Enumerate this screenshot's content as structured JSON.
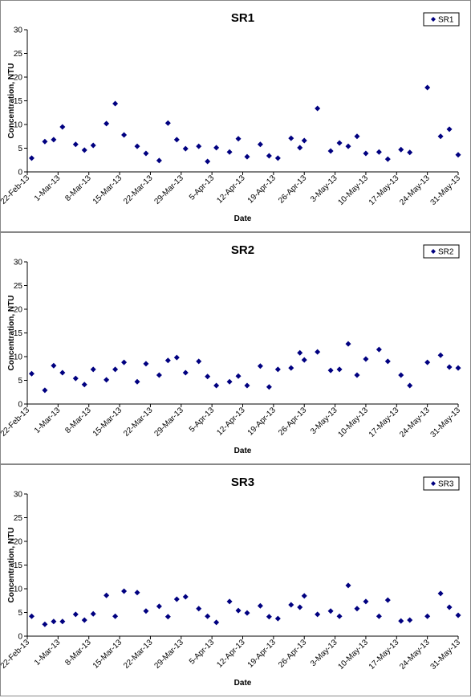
{
  "chart_data": [
    {
      "type": "scatter",
      "title": "SR1",
      "x_label": "Date",
      "y_label": "Concentration, NTU",
      "x": [
        "2013-02-23",
        "2013-02-26",
        "2013-02-28",
        "2013-03-02",
        "2013-03-05",
        "2013-03-07",
        "2013-03-09",
        "2013-03-12",
        "2013-03-14",
        "2013-03-16",
        "2013-03-19",
        "2013-03-21",
        "2013-03-24",
        "2013-03-26",
        "2013-03-28",
        "2013-03-30",
        "2013-04-02",
        "2013-04-04",
        "2013-04-06",
        "2013-04-09",
        "2013-04-11",
        "2013-04-13",
        "2013-04-16",
        "2013-04-18",
        "2013-04-20",
        "2013-04-23",
        "2013-04-25",
        "2013-04-26",
        "2013-04-29",
        "2013-05-02",
        "2013-05-04",
        "2013-05-06",
        "2013-05-08",
        "2013-05-10",
        "2013-05-13",
        "2013-05-15",
        "2013-05-18",
        "2013-05-20",
        "2013-05-24",
        "2013-05-27",
        "2013-05-29",
        "2013-05-31"
      ],
      "series": [
        {
          "name": "SR1",
          "color": "#000080",
          "values": [
            2.9,
            6.4,
            6.8,
            9.5,
            5.8,
            4.6,
            5.6,
            10.2,
            14.4,
            7.8,
            5.4,
            3.9,
            2.4,
            10.3,
            6.8,
            4.9,
            5.4,
            2.2,
            5.1,
            4.2,
            7.0,
            3.2,
            5.8,
            3.4,
            2.9,
            7.1,
            5.1,
            6.6,
            13.4,
            4.4,
            6.1,
            5.4,
            7.5,
            3.9,
            4.2,
            2.7,
            4.7,
            4.1,
            17.8,
            7.5,
            9.0,
            3.6
          ]
        }
      ],
      "xlim": [
        "2013-02-22",
        "2013-05-31"
      ],
      "xticks": [
        {
          "value": "2013-02-22",
          "label": "22-Feb-13"
        },
        {
          "value": "2013-03-01",
          "label": "1-Mar-13"
        },
        {
          "value": "2013-03-08",
          "label": "8-Mar-13"
        },
        {
          "value": "2013-03-15",
          "label": "15-Mar-13"
        },
        {
          "value": "2013-03-22",
          "label": "22-Mar-13"
        },
        {
          "value": "2013-03-29",
          "label": "29-Mar-13"
        },
        {
          "value": "2013-04-05",
          "label": "5-Apr-13"
        },
        {
          "value": "2013-04-12",
          "label": "12-Apr-13"
        },
        {
          "value": "2013-04-19",
          "label": "19-Apr-13"
        },
        {
          "value": "2013-04-26",
          "label": "26-Apr-13"
        },
        {
          "value": "2013-05-03",
          "label": "3-May-13"
        },
        {
          "value": "2013-05-10",
          "label": "10-May-13"
        },
        {
          "value": "2013-05-17",
          "label": "17-May-13"
        },
        {
          "value": "2013-05-24",
          "label": "24-May-13"
        },
        {
          "value": "2013-05-31",
          "label": "31-May-13"
        }
      ],
      "ylim": [
        0,
        30
      ],
      "yticks": [
        0,
        5,
        10,
        15,
        20,
        25,
        30
      ],
      "legend": "top-right"
    },
    {
      "type": "scatter",
      "title": "SR2",
      "x_label": "Date",
      "y_label": "Concentration, NTU",
      "x": [
        "2013-02-23",
        "2013-02-26",
        "2013-02-28",
        "2013-03-02",
        "2013-03-05",
        "2013-03-07",
        "2013-03-09",
        "2013-03-12",
        "2013-03-14",
        "2013-03-16",
        "2013-03-19",
        "2013-03-21",
        "2013-03-24",
        "2013-03-26",
        "2013-03-28",
        "2013-03-30",
        "2013-04-02",
        "2013-04-04",
        "2013-04-06",
        "2013-04-09",
        "2013-04-11",
        "2013-04-13",
        "2013-04-16",
        "2013-04-18",
        "2013-04-20",
        "2013-04-23",
        "2013-04-25",
        "2013-04-26",
        "2013-04-29",
        "2013-05-02",
        "2013-05-04",
        "2013-05-06",
        "2013-05-08",
        "2013-05-10",
        "2013-05-13",
        "2013-05-15",
        "2013-05-18",
        "2013-05-20",
        "2013-05-24",
        "2013-05-27",
        "2013-05-29",
        "2013-05-31"
      ],
      "series": [
        {
          "name": "SR2",
          "color": "#000080",
          "values": [
            6.4,
            2.9,
            8.1,
            6.6,
            5.4,
            4.1,
            7.3,
            5.1,
            7.3,
            8.8,
            4.7,
            8.5,
            6.1,
            9.2,
            9.8,
            6.6,
            9.0,
            5.8,
            3.9,
            4.7,
            5.9,
            3.9,
            8.0,
            3.6,
            7.3,
            7.6,
            10.8,
            9.3,
            11.0,
            7.1,
            7.3,
            12.7,
            6.1,
            9.5,
            11.5,
            9.0,
            6.1,
            3.9,
            8.8,
            10.3,
            7.8,
            7.6
          ]
        }
      ],
      "xlim": [
        "2013-02-22",
        "2013-05-31"
      ],
      "xticks": [
        {
          "value": "2013-02-22",
          "label": "22-Feb-13"
        },
        {
          "value": "2013-03-01",
          "label": "1-Mar-13"
        },
        {
          "value": "2013-03-08",
          "label": "8-Mar-13"
        },
        {
          "value": "2013-03-15",
          "label": "15-Mar-13"
        },
        {
          "value": "2013-03-22",
          "label": "22-Mar-13"
        },
        {
          "value": "2013-03-29",
          "label": "29-Mar-13"
        },
        {
          "value": "2013-04-05",
          "label": "5-Apr-13"
        },
        {
          "value": "2013-04-12",
          "label": "12-Apr-13"
        },
        {
          "value": "2013-04-19",
          "label": "19-Apr-13"
        },
        {
          "value": "2013-04-26",
          "label": "26-Apr-13"
        },
        {
          "value": "2013-05-03",
          "label": "3-May-13"
        },
        {
          "value": "2013-05-10",
          "label": "10-May-13"
        },
        {
          "value": "2013-05-17",
          "label": "17-May-13"
        },
        {
          "value": "2013-05-24",
          "label": "24-May-13"
        },
        {
          "value": "2013-05-31",
          "label": "31-May-13"
        }
      ],
      "ylim": [
        0,
        30
      ],
      "yticks": [
        0,
        5,
        10,
        15,
        20,
        25,
        30
      ],
      "legend": "top-right"
    },
    {
      "type": "scatter",
      "title": "SR3",
      "x_label": "Date",
      "y_label": "Concentration, NTU",
      "x": [
        "2013-02-23",
        "2013-02-26",
        "2013-02-28",
        "2013-03-02",
        "2013-03-05",
        "2013-03-07",
        "2013-03-09",
        "2013-03-12",
        "2013-03-14",
        "2013-03-16",
        "2013-03-19",
        "2013-03-21",
        "2013-03-24",
        "2013-03-26",
        "2013-03-28",
        "2013-03-30",
        "2013-04-02",
        "2013-04-04",
        "2013-04-06",
        "2013-04-09",
        "2013-04-11",
        "2013-04-13",
        "2013-04-16",
        "2013-04-18",
        "2013-04-20",
        "2013-04-23",
        "2013-04-25",
        "2013-04-26",
        "2013-04-29",
        "2013-05-02",
        "2013-05-04",
        "2013-05-06",
        "2013-05-08",
        "2013-05-10",
        "2013-05-13",
        "2013-05-15",
        "2013-05-18",
        "2013-05-20",
        "2013-05-24",
        "2013-05-27",
        "2013-05-29",
        "2013-05-31"
      ],
      "series": [
        {
          "name": "SR3",
          "color": "#000080",
          "values": [
            4.2,
            2.5,
            3.1,
            3.1,
            4.6,
            3.4,
            4.7,
            8.6,
            4.2,
            9.5,
            9.2,
            5.3,
            6.3,
            4.1,
            7.8,
            8.3,
            5.8,
            4.2,
            2.9,
            7.3,
            5.4,
            4.9,
            6.4,
            4.1,
            3.7,
            6.6,
            6.1,
            8.5,
            4.6,
            5.3,
            4.2,
            10.7,
            5.8,
            7.3,
            4.2,
            7.6,
            3.2,
            3.4,
            4.2,
            9.0,
            6.1,
            4.4
          ]
        }
      ],
      "xlim": [
        "2013-02-22",
        "2013-05-31"
      ],
      "xticks": [
        {
          "value": "2013-02-22",
          "label": "22-Feb-13"
        },
        {
          "value": "2013-03-01",
          "label": "1-Mar-13"
        },
        {
          "value": "2013-03-08",
          "label": "8-Mar-13"
        },
        {
          "value": "2013-03-15",
          "label": "15-Mar-13"
        },
        {
          "value": "2013-03-22",
          "label": "22-Mar-13"
        },
        {
          "value": "2013-03-29",
          "label": "29-Mar-13"
        },
        {
          "value": "2013-04-05",
          "label": "5-Apr-13"
        },
        {
          "value": "2013-04-12",
          "label": "12-Apr-13"
        },
        {
          "value": "2013-04-19",
          "label": "19-Apr-13"
        },
        {
          "value": "2013-04-26",
          "label": "26-Apr-13"
        },
        {
          "value": "2013-05-03",
          "label": "3-May-13"
        },
        {
          "value": "2013-05-10",
          "label": "10-May-13"
        },
        {
          "value": "2013-05-17",
          "label": "17-May-13"
        },
        {
          "value": "2013-05-24",
          "label": "24-May-13"
        },
        {
          "value": "2013-05-31",
          "label": "31-May-13"
        }
      ],
      "ylim": [
        0,
        30
      ],
      "yticks": [
        0,
        5,
        10,
        15,
        20,
        25,
        30
      ],
      "legend": "top-right"
    }
  ]
}
